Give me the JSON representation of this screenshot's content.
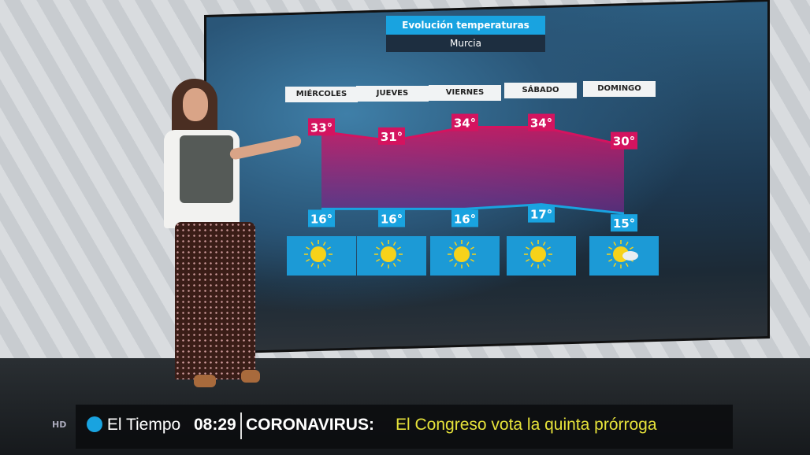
{
  "graphic": {
    "title": "Evolución temperaturas",
    "location": "Murcia"
  },
  "chart_data": {
    "type": "area",
    "title": "Evolución temperaturas",
    "subtitle": "Murcia",
    "categories": [
      "MIÉRCOLES",
      "JUEVES",
      "VIERNES",
      "SÁBADO",
      "DOMINGO"
    ],
    "series": [
      {
        "name": "max",
        "values": [
          33,
          31,
          34,
          34,
          30
        ],
        "color": "#d4135f"
      },
      {
        "name": "min",
        "values": [
          16,
          16,
          16,
          17,
          15
        ],
        "color": "#19a3e0"
      }
    ],
    "labels_max": [
      "33°",
      "31°",
      "34°",
      "34°",
      "30°"
    ],
    "labels_min": [
      "16°",
      "16°",
      "16°",
      "17°",
      "15°"
    ],
    "weather_icons": [
      "sun-icon",
      "sun-icon",
      "sun-icon",
      "sun-icon",
      "sun-cloud-icon"
    ],
    "ylim": [
      10,
      36
    ],
    "grid": false
  },
  "ticker": {
    "hd": "HD",
    "channel": "El Tiempo",
    "time": "08:29",
    "headline_label": "CORONAVIRUS:",
    "headline": "El Congreso vota la quinta prórroga",
    "headline_color": "#e6e23a"
  }
}
